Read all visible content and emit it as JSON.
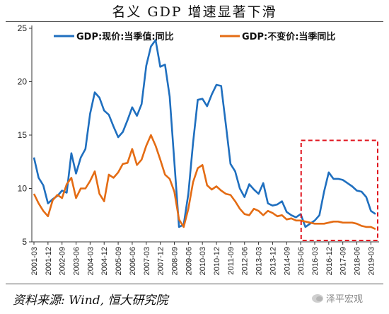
{
  "title": "名义 GDP 增速显著下滑",
  "source": "资料来源: Wind, 恒大研究院",
  "watermark": "泽平宏观",
  "icons": {
    "watermark": "wechat-icon"
  },
  "colors": {
    "series_current": "#1f6fbf",
    "series_constant": "#e46c14",
    "highlight_box": "#e0141e"
  },
  "chart_data": {
    "type": "line",
    "title": "名义 GDP 增速显著下滑",
    "xlabel": "",
    "ylabel": "",
    "ylim": [
      5,
      25
    ],
    "yticks": [
      5,
      10,
      15,
      20,
      25
    ],
    "grid": false,
    "legend_position": "top",
    "x_tick_labels": [
      "2001-03",
      "2001-12",
      "2002-09",
      "2003-06",
      "2004-03",
      "2004-12",
      "2005-09",
      "2006-06",
      "2007-03",
      "2007-12",
      "2008-09",
      "2009-06",
      "2010-03",
      "2010-12",
      "2011-09",
      "2012-06",
      "2013-03",
      "2013-12",
      "2014-09",
      "2015-06",
      "2016-03",
      "2016-12",
      "2017-09",
      "2018-06",
      "2019-03"
    ],
    "x": [
      "2001-03",
      "2001-06",
      "2001-09",
      "2001-12",
      "2002-03",
      "2002-06",
      "2002-09",
      "2002-12",
      "2003-03",
      "2003-06",
      "2003-09",
      "2003-12",
      "2004-03",
      "2004-06",
      "2004-09",
      "2004-12",
      "2005-03",
      "2005-06",
      "2005-09",
      "2005-12",
      "2006-03",
      "2006-06",
      "2006-09",
      "2006-12",
      "2007-03",
      "2007-06",
      "2007-09",
      "2007-12",
      "2008-03",
      "2008-06",
      "2008-09",
      "2008-12",
      "2009-03",
      "2009-06",
      "2009-09",
      "2009-12",
      "2010-03",
      "2010-06",
      "2010-09",
      "2010-12",
      "2011-03",
      "2011-06",
      "2011-09",
      "2011-12",
      "2012-03",
      "2012-06",
      "2012-09",
      "2012-12",
      "2013-03",
      "2013-06",
      "2013-09",
      "2013-12",
      "2014-03",
      "2014-06",
      "2014-09",
      "2014-12",
      "2015-03",
      "2015-06",
      "2015-09",
      "2015-12",
      "2016-03",
      "2016-06",
      "2016-09",
      "2016-12",
      "2017-03",
      "2017-06",
      "2017-09",
      "2017-12",
      "2018-03",
      "2018-06",
      "2018-09",
      "2018-12",
      "2019-03",
      "2019-06"
    ],
    "series": [
      {
        "name": "GDP:现价:当季值:同比",
        "color": "#1f6fbf",
        "values": [
          12.9,
          11.0,
          10.3,
          8.6,
          9.0,
          9.3,
          9.8,
          9.6,
          13.3,
          11.4,
          12.9,
          13.7,
          17.0,
          19.0,
          18.5,
          17.3,
          16.9,
          15.8,
          14.8,
          15.3,
          16.4,
          17.6,
          16.8,
          17.9,
          21.5,
          23.3,
          23.9,
          21.4,
          21.6,
          18.6,
          12.5,
          6.4,
          6.6,
          9.5,
          14.3,
          18.3,
          18.4,
          17.7,
          18.8,
          19.7,
          19.6,
          16.0,
          12.3,
          11.6,
          10.0,
          9.2,
          10.4,
          9.9,
          9.5,
          10.5,
          8.6,
          8.4,
          8.5,
          8.8,
          7.8,
          7.5,
          7.3,
          7.6,
          6.4,
          6.7,
          7.0,
          7.5,
          9.7,
          11.5,
          10.9,
          10.9,
          10.8,
          10.5,
          10.2,
          9.8,
          9.7,
          9.2,
          7.9,
          7.6
        ]
      },
      {
        "name": "GDP:不变价:当季同比",
        "color": "#e46c14",
        "values": [
          9.5,
          8.6,
          7.9,
          7.4,
          8.9,
          9.4,
          9.1,
          10.4,
          11.0,
          9.1,
          10.0,
          10.0,
          10.7,
          11.6,
          9.5,
          8.8,
          11.3,
          11.0,
          11.5,
          12.3,
          12.4,
          13.7,
          12.2,
          12.7,
          14.0,
          15.0,
          14.0,
          12.7,
          11.3,
          10.9,
          9.7,
          7.1,
          6.4,
          8.1,
          10.6,
          11.9,
          12.2,
          10.3,
          9.9,
          10.2,
          9.8,
          9.5,
          9.4,
          8.8,
          8.1,
          7.6,
          7.5,
          8.1,
          7.9,
          7.5,
          7.9,
          7.7,
          7.4,
          7.5,
          7.1,
          7.2,
          7.0,
          7.0,
          6.9,
          6.8,
          6.7,
          6.7,
          6.7,
          6.8,
          6.9,
          6.9,
          6.8,
          6.8,
          6.8,
          6.7,
          6.5,
          6.4,
          6.4,
          6.2
        ]
      }
    ],
    "annotations": [
      {
        "type": "dashed-box",
        "x_from": "2015-09",
        "x_to": "2019-06",
        "y_from": 5.0,
        "y_to": 14.5,
        "color": "#e0141e"
      }
    ]
  }
}
